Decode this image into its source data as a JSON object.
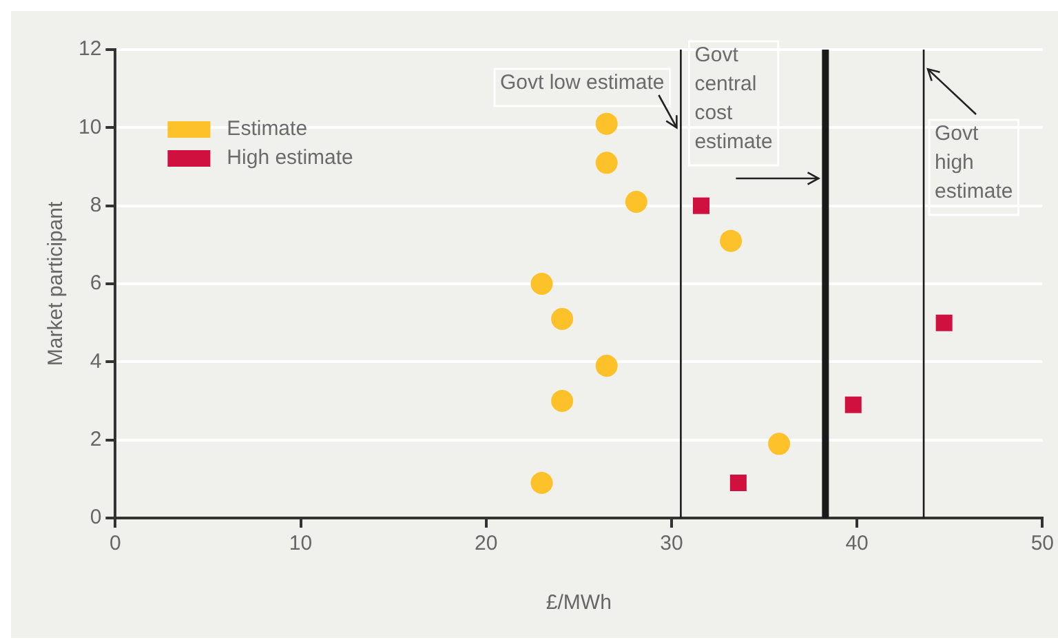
{
  "chart_data": {
    "type": "scatter",
    "xlabel": "£/MWh",
    "ylabel": "Market participant",
    "xlim": [
      0,
      50
    ],
    "xticks": [
      0,
      10,
      20,
      30,
      40,
      50
    ],
    "ylim": [
      0,
      12
    ],
    "yticks": [
      0,
      2,
      4,
      6,
      8,
      10,
      12
    ],
    "grid": "y",
    "legend": "top left",
    "series": [
      {
        "name": "Estimate",
        "color": "#fdc12a",
        "marker": "circle",
        "x": [
          26.5,
          26.5,
          28.1,
          33.2,
          23.0,
          24.1,
          26.5,
          24.1,
          35.8,
          23.0
        ],
        "values": [
          10.1,
          9.1,
          8.1,
          7.1,
          6.0,
          5.1,
          3.9,
          3.0,
          1.9,
          0.9
        ]
      },
      {
        "name": "High estimate",
        "color": "#d0103f",
        "marker": "square",
        "x": [
          31.6,
          44.7,
          39.8,
          33.6
        ],
        "values": [
          8.0,
          5.0,
          2.9,
          0.9
        ]
      }
    ],
    "ref_lines": [
      {
        "axis": "x",
        "value": 30.5,
        "label": "Govt low estimate",
        "color": "#1a1a1a"
      },
      {
        "axis": "x",
        "value": 38.3,
        "label": "Govt central cost estimate",
        "color": "#1a1a1a"
      },
      {
        "axis": "x",
        "value": 43.6,
        "label": "Govt high estimate",
        "color": "#1a1a1a"
      }
    ]
  }
}
